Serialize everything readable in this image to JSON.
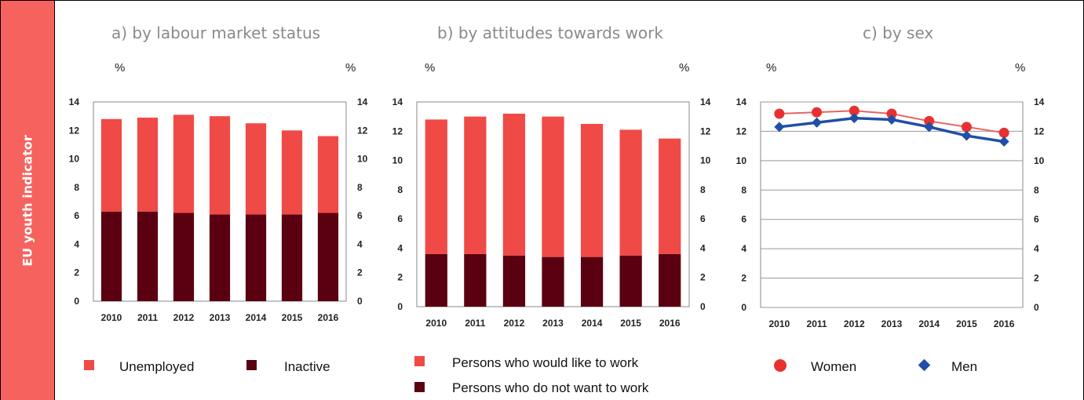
{
  "sidebar": {
    "label": "EU youth indicator"
  },
  "colors": {
    "unemployed": "#f04a47",
    "inactive": "#5a0010",
    "women": "#e8312f",
    "men": "#1f4fa8",
    "sidebar": "#f6635e"
  },
  "chart_data": [
    {
      "type": "bar",
      "stacked": true,
      "title": "a) by labour market status",
      "unit_left": "%",
      "unit_right": "%",
      "categories": [
        "2010",
        "2011",
        "2012",
        "2013",
        "2014",
        "2015",
        "2016"
      ],
      "series": [
        {
          "name": "Inactive",
          "values": [
            6.3,
            6.3,
            6.2,
            6.1,
            6.1,
            6.1,
            6.2
          ]
        },
        {
          "name": "Unemployed",
          "values": [
            6.5,
            6.6,
            6.9,
            6.9,
            6.4,
            5.9,
            5.4
          ]
        }
      ],
      "ylim": [
        0,
        14
      ],
      "yticks": [
        "0",
        "2",
        "4",
        "6",
        "8",
        "10",
        "12",
        "14"
      ]
    },
    {
      "type": "bar",
      "stacked": true,
      "title": "b) by attitudes towards work",
      "unit_left": "%",
      "unit_right": "%",
      "categories": [
        "2010",
        "2011",
        "2012",
        "2013",
        "2014",
        "2015",
        "2016"
      ],
      "series": [
        {
          "name": "Persons who do not want to work",
          "values": [
            3.6,
            3.6,
            3.5,
            3.4,
            3.4,
            3.5,
            3.6
          ]
        },
        {
          "name": "Persons who would like to work",
          "values": [
            9.2,
            9.4,
            9.7,
            9.6,
            9.1,
            8.6,
            7.9
          ]
        }
      ],
      "ylim": [
        0,
        14
      ],
      "yticks": [
        "0",
        "2",
        "4",
        "6",
        "8",
        "10",
        "12",
        "14"
      ]
    },
    {
      "type": "line",
      "title": "c) by sex",
      "unit_left": "%",
      "unit_right": "%",
      "categories": [
        "2010",
        "2011",
        "2012",
        "2013",
        "2014",
        "2015",
        "2016"
      ],
      "series": [
        {
          "name": "Women",
          "values": [
            13.2,
            13.3,
            13.4,
            13.2,
            12.7,
            12.3,
            11.9
          ]
        },
        {
          "name": "Men",
          "values": [
            12.3,
            12.6,
            12.9,
            12.8,
            12.3,
            11.7,
            11.3
          ]
        }
      ],
      "ylim": [
        0,
        14
      ],
      "yticks": [
        "0",
        "2",
        "4",
        "6",
        "8",
        "10",
        "12",
        "14"
      ]
    }
  ]
}
